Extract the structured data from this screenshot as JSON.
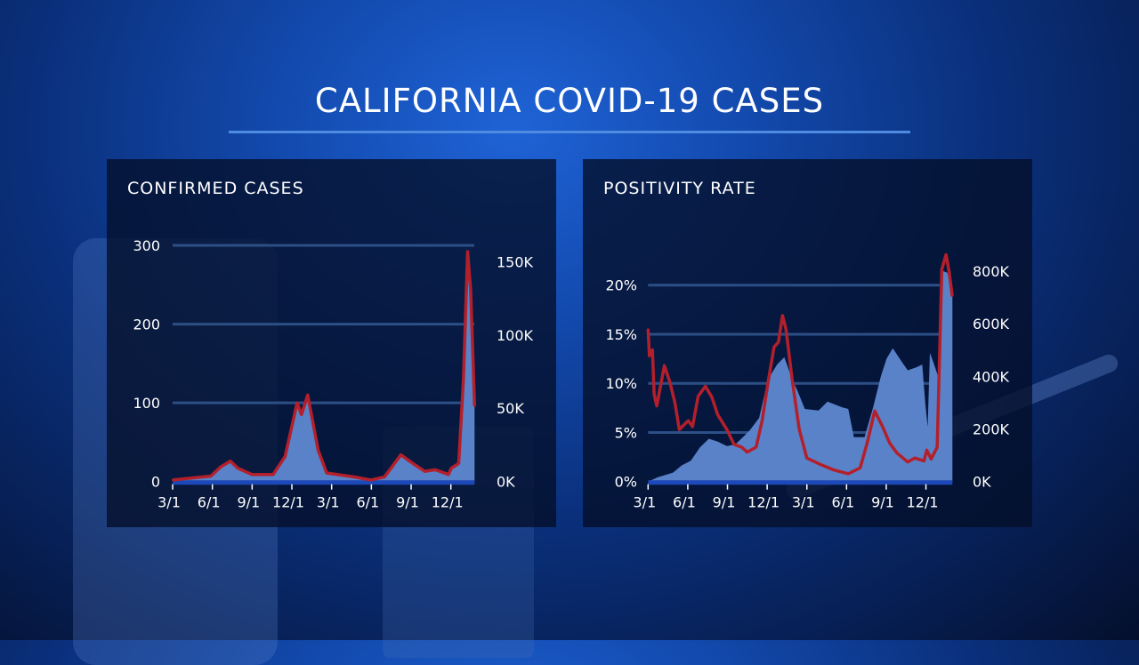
{
  "title": "CALIFORNIA COVID-19 CASES",
  "colors": {
    "line": "#b3202b",
    "area": "#5a82c8",
    "grid": "#2c4f86",
    "baseline": "#1d48b8"
  },
  "chart_data": [
    {
      "type": "line+area",
      "title": "CONFIRMED CASES",
      "x_tick_labels": [
        "3/1",
        "6/1",
        "9/1",
        "12/1",
        "3/1",
        "6/1",
        "9/1",
        "12/1"
      ],
      "x_ticks": [
        "2020-03-01",
        "2020-06-01",
        "2020-09-01",
        "2020-12-01",
        "2021-03-01",
        "2021-06-01",
        "2021-09-01",
        "2021-12-01"
      ],
      "left_axis": {
        "ylim": [
          0,
          300
        ],
        "ticks": [
          0,
          100,
          200,
          300
        ],
        "tick_labels": [
          "0",
          "100",
          "200",
          "300"
        ]
      },
      "right_axis": {
        "ylim": [
          0,
          150
        ],
        "ticks": [
          0,
          50,
          100,
          150
        ],
        "tick_labels": [
          "0K",
          "50K",
          "100K",
          "150K"
        ]
      },
      "grid": true,
      "series": [
        {
          "type": "line",
          "axis": "left",
          "x": [
            "2020-03-01",
            "2020-05-28",
            "2020-06-21",
            "2020-07-12",
            "2020-07-29",
            "2020-08-31",
            "2020-10-19",
            "2020-11-16",
            "2020-12-13",
            "2020-12-23",
            "2021-01-07",
            "2021-01-31",
            "2021-02-20",
            "2021-04-21",
            "2021-05-30",
            "2021-07-01",
            "2021-08-08",
            "2021-09-05",
            "2021-10-02",
            "2021-10-26",
            "2021-11-26",
            "2021-12-02",
            "2021-12-19",
            "2021-12-30",
            "2022-01-09",
            "2022-01-16",
            "2022-01-25"
          ],
          "values": [
            2,
            7,
            19,
            26,
            17,
            9,
            9,
            32,
            100,
            85,
            110,
            40,
            11,
            6,
            2,
            6,
            34,
            23,
            13,
            15,
            9,
            17,
            23,
            130,
            292,
            243,
            96
          ]
        },
        {
          "type": "area",
          "axis": "right",
          "x": [
            "2020-03-01",
            "2020-05-28",
            "2020-06-21",
            "2020-07-12",
            "2020-07-29",
            "2020-08-31",
            "2020-10-19",
            "2020-11-16",
            "2020-12-13",
            "2020-12-23",
            "2021-01-07",
            "2021-01-31",
            "2021-02-20",
            "2021-04-21",
            "2021-05-30",
            "2021-07-01",
            "2021-08-08",
            "2021-09-05",
            "2021-10-02",
            "2021-10-26",
            "2021-11-26",
            "2021-12-02",
            "2021-12-19",
            "2021-12-30",
            "2022-01-09",
            "2022-01-16",
            "2022-01-25"
          ],
          "values": [
            1,
            4,
            10,
            14,
            9,
            5,
            5,
            17,
            54,
            46,
            59,
            21,
            6,
            3,
            1,
            3,
            18,
            12,
            7,
            8,
            5,
            9,
            12,
            70,
            150,
            130,
            52
          ]
        }
      ]
    },
    {
      "type": "line+area",
      "title": "POSITIVITY RATE",
      "x_tick_labels": [
        "3/1",
        "6/1",
        "9/1",
        "12/1",
        "3/1",
        "6/1",
        "9/1",
        "12/1"
      ],
      "x_ticks": [
        "2020-03-01",
        "2020-06-01",
        "2020-09-01",
        "2020-12-01",
        "2021-03-01",
        "2021-06-01",
        "2021-09-01",
        "2021-12-01"
      ],
      "left_axis": {
        "ylim": [
          0,
          20
        ],
        "ticks": [
          0,
          5,
          10,
          15,
          20
        ],
        "tick_labels": [
          "0%",
          "5%",
          "10%",
          "15%",
          "20%"
        ]
      },
      "right_axis": {
        "ylim": [
          0,
          800
        ],
        "ticks": [
          0,
          200,
          400,
          600,
          800
        ],
        "tick_labels": [
          "0K",
          "200K",
          "400K",
          "600K",
          "800K"
        ]
      },
      "grid": true,
      "series": [
        {
          "type": "line",
          "axis": "left",
          "x": [
            "2020-03-01",
            "2020-03-04",
            "2020-03-11",
            "2020-03-15",
            "2020-03-21",
            "2020-04-08",
            "2020-04-21",
            "2020-05-02",
            "2020-05-12",
            "2020-06-02",
            "2020-06-12",
            "2020-06-25",
            "2020-07-11",
            "2020-07-26",
            "2020-08-09",
            "2020-08-30",
            "2020-09-16",
            "2020-10-03",
            "2020-10-16",
            "2020-11-06",
            "2020-11-20",
            "2020-12-03",
            "2020-12-17",
            "2020-12-27",
            "2021-01-06",
            "2021-01-14",
            "2021-01-28",
            "2021-02-14",
            "2021-03-01",
            "2021-04-04",
            "2021-05-01",
            "2021-06-05",
            "2021-07-02",
            "2021-07-19",
            "2021-08-05",
            "2021-08-23",
            "2021-09-09",
            "2021-09-26",
            "2021-10-20",
            "2021-11-06",
            "2021-11-27",
            "2021-12-03",
            "2021-12-13",
            "2021-12-27",
            "2022-01-07",
            "2022-01-17",
            "2022-01-24",
            "2022-01-31"
          ],
          "values": [
            15.5,
            12.8,
            13.4,
            8.9,
            7.7,
            11.8,
            10.1,
            8.0,
            5.3,
            6.2,
            5.6,
            8.7,
            9.7,
            8.6,
            6.8,
            5.3,
            3.8,
            3.5,
            3.0,
            3.5,
            6.2,
            10.1,
            13.7,
            14.2,
            16.9,
            15.5,
            10.4,
            5.3,
            2.4,
            1.7,
            1.2,
            0.8,
            1.4,
            4.1,
            7.2,
            5.6,
            3.9,
            2.9,
            2.0,
            2.4,
            2.1,
            3.2,
            2.3,
            3.5,
            21.6,
            23.1,
            21.3,
            18.9
          ]
        },
        {
          "type": "area",
          "axis": "right",
          "x": [
            "2020-03-01",
            "2020-03-24",
            "2020-04-28",
            "2020-05-18",
            "2020-06-08",
            "2020-06-29",
            "2020-07-19",
            "2020-08-09",
            "2020-08-30",
            "2020-09-19",
            "2020-10-10",
            "2020-10-23",
            "2020-11-13",
            "2020-12-03",
            "2020-12-24",
            "2021-01-10",
            "2021-01-28",
            "2021-02-10",
            "2021-02-27",
            "2021-03-28",
            "2021-04-18",
            "2021-05-22",
            "2021-06-05",
            "2021-06-18",
            "2021-07-12",
            "2021-08-02",
            "2021-08-19",
            "2021-09-02",
            "2021-09-16",
            "2021-10-06",
            "2021-10-20",
            "2021-11-09",
            "2021-11-23",
            "2021-11-30",
            "2021-12-05",
            "2021-12-10",
            "2021-12-20",
            "2021-12-31",
            "2022-01-10",
            "2022-01-20",
            "2022-02-01"
          ],
          "values": [
            0,
            17,
            34,
            62,
            79,
            130,
            163,
            152,
            135,
            141,
            175,
            197,
            242,
            389,
            445,
            473,
            389,
            344,
            276,
            270,
            304,
            282,
            276,
            169,
            169,
            287,
            400,
            468,
            507,
            456,
            423,
            434,
            445,
            299,
            208,
            490,
            445,
            389,
            800,
            794,
            704
          ]
        }
      ]
    }
  ]
}
